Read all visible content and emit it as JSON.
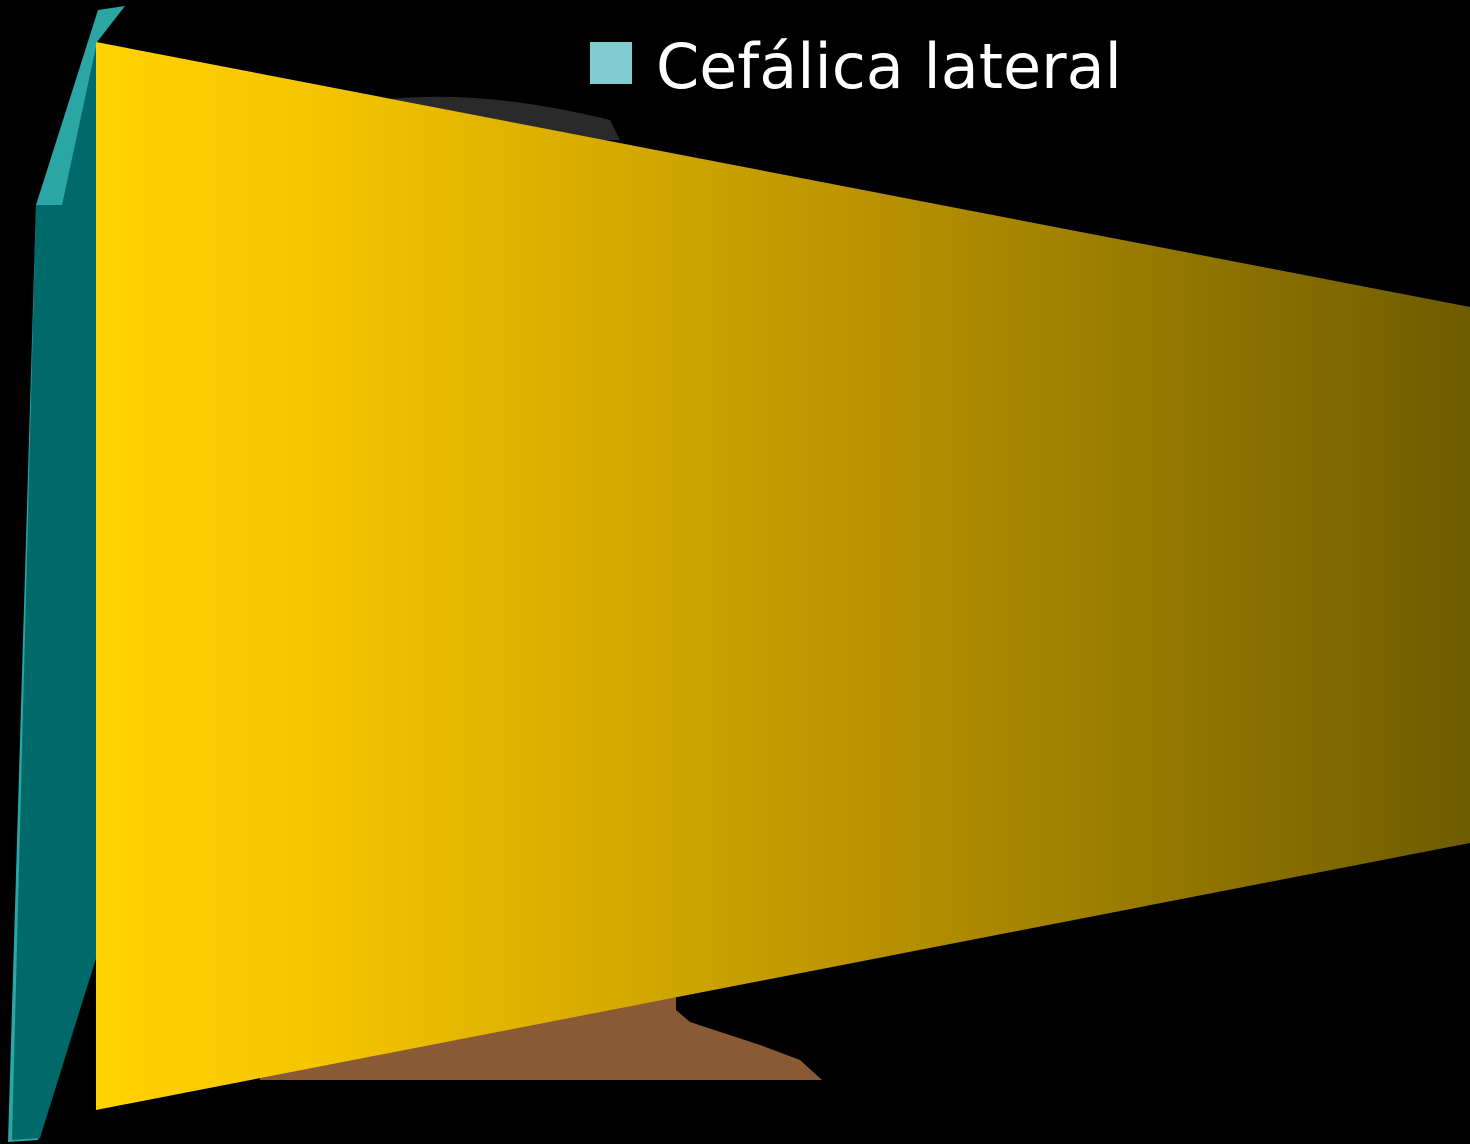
{
  "slide": {
    "bullet": "Cefálica lateral"
  }
}
